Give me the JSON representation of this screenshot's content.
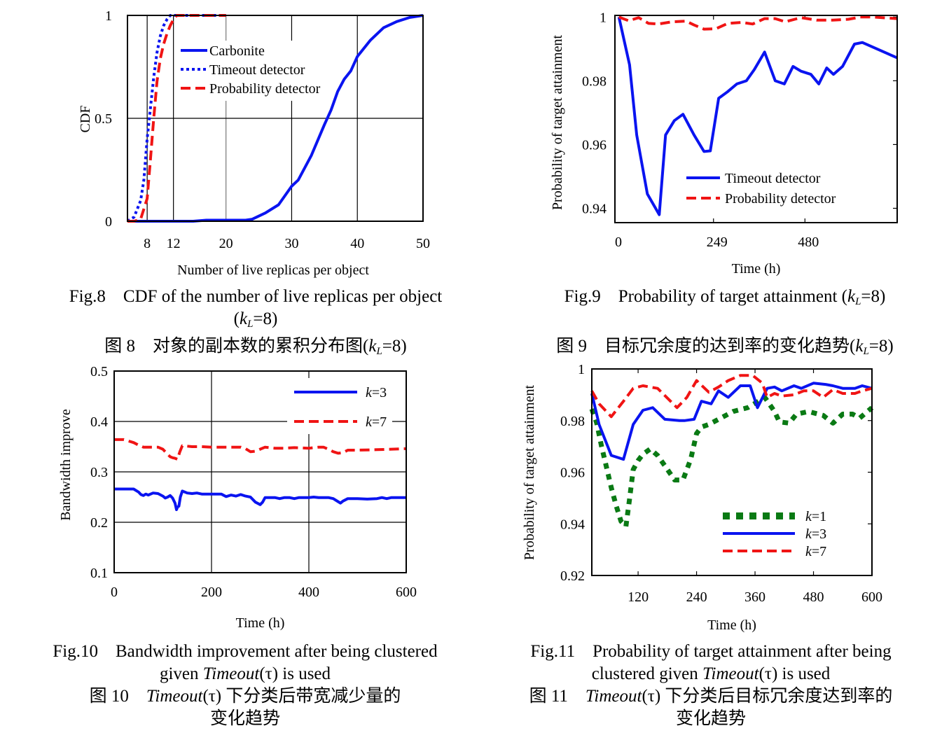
{
  "colors": {
    "blue": "#0a14f0",
    "red": "#f01414",
    "green": "#0a7a14",
    "grid": "#000000"
  },
  "chart_data": [
    {
      "id": "fig8",
      "type": "line",
      "ylabel": "CDF",
      "xlabel": "Number of live replicas per object",
      "xlim": [
        5,
        50
      ],
      "ylim": [
        0,
        1
      ],
      "xticks": [
        8,
        12,
        20,
        30,
        40,
        50
      ],
      "yticks": [
        0,
        0.5,
        1
      ],
      "ytick_labels": [
        "0",
        "0.5",
        "1"
      ],
      "grid": true,
      "legend_position": "top-center",
      "series": [
        {
          "name": "Carbonite",
          "style": "solid",
          "color": "#0a14f0",
          "x": [
            5,
            10,
            15,
            17,
            20,
            23,
            24,
            26,
            28,
            30,
            31,
            33,
            35,
            36,
            37,
            38,
            39,
            40,
            42,
            44,
            46,
            48,
            50
          ],
          "y": [
            0,
            0,
            0,
            0.005,
            0.005,
            0.005,
            0.01,
            0.04,
            0.08,
            0.17,
            0.2,
            0.32,
            0.47,
            0.54,
            0.63,
            0.69,
            0.73,
            0.8,
            0.88,
            0.94,
            0.97,
            0.99,
            1.0
          ]
        },
        {
          "name": "Timeout detector",
          "style": "dotted",
          "color": "#0a14f0",
          "x": [
            5,
            6,
            7,
            7.5,
            8,
            8.5,
            9,
            9.5,
            10,
            10.5,
            11,
            11.5,
            12,
            20
          ],
          "y": [
            0,
            0.02,
            0.1,
            0.2,
            0.4,
            0.55,
            0.7,
            0.82,
            0.9,
            0.95,
            0.98,
            1.0,
            1.0,
            1.0
          ]
        },
        {
          "name": "Probability detector",
          "style": "dashed",
          "color": "#f01414",
          "x": [
            5,
            6,
            7,
            8,
            8.5,
            9,
            9.5,
            10,
            10.5,
            11,
            11.5,
            12,
            12.5,
            13,
            20
          ],
          "y": [
            0,
            0,
            0.01,
            0.11,
            0.3,
            0.5,
            0.68,
            0.79,
            0.86,
            0.91,
            0.95,
            0.98,
            1.0,
            1.0,
            1.0
          ]
        }
      ]
    },
    {
      "id": "fig9",
      "type": "line",
      "ylabel": "Probability of target attainment",
      "xlabel": "Time (h)",
      "xlim": [
        0,
        713
      ],
      "ylim": [
        0.9355,
        1.0005
      ],
      "xticks": [
        0,
        249,
        480
      ],
      "yticks": [
        0.94,
        0.96,
        0.98,
        1
      ],
      "ytick_labels": [
        "0.94",
        "0.96",
        "0.98",
        "1"
      ],
      "grid": false,
      "legend_position": "bottom-center",
      "series": [
        {
          "name": "Timeout detector",
          "style": "solid",
          "color": "#0a14f0",
          "x": [
            10,
            37,
            55,
            82,
            112,
            128,
            150,
            172,
            200,
            225,
            241,
            262,
            284,
            308,
            332,
            352,
            378,
            405,
            428,
            450,
            470,
            495,
            515,
            535,
            552,
            575,
            605,
            625,
            713
          ],
          "y": [
            1.0,
            0.985,
            0.963,
            0.9445,
            0.938,
            0.963,
            0.9675,
            0.9695,
            0.963,
            0.9578,
            0.958,
            0.9745,
            0.9765,
            0.979,
            0.98,
            0.9835,
            0.989,
            0.98,
            0.979,
            0.9845,
            0.983,
            0.982,
            0.979,
            0.984,
            0.982,
            0.9845,
            0.9915,
            0.992,
            0.9872
          ]
        },
        {
          "name": "Probability detector",
          "style": "dashed",
          "color": "#f01414",
          "x": [
            10,
            35,
            60,
            85,
            110,
            145,
            180,
            200,
            225,
            255,
            285,
            320,
            348,
            378,
            405,
            430,
            470,
            510,
            550,
            590,
            620,
            650,
            713
          ],
          "y": [
            1.0,
            0.9988,
            0.9998,
            0.998,
            0.9978,
            0.9985,
            0.9987,
            0.9975,
            0.9962,
            0.9963,
            0.998,
            0.9983,
            0.9978,
            0.9995,
            0.9995,
            0.9985,
            0.9998,
            0.999,
            0.999,
            0.9993,
            1.0,
            1.0,
            0.9995
          ]
        }
      ]
    },
    {
      "id": "fig10",
      "type": "line",
      "ylabel": "Bandwidth improve",
      "xlabel": "Time (h)",
      "xlim": [
        0,
        600
      ],
      "ylim": [
        0.1,
        0.5
      ],
      "xticks": [
        0,
        200,
        400,
        600
      ],
      "yticks": [
        0.1,
        0.2,
        0.3,
        0.4,
        0.5
      ],
      "ytick_labels": [
        "0.1",
        "0.2",
        "0.3",
        "0.4",
        "0.5"
      ],
      "grid": true,
      "legend_position": "top-right",
      "series": [
        {
          "name": "k=3",
          "legend_k": "k",
          "legend_val": "=3",
          "style": "solid",
          "color": "#0a14f0",
          "x": [
            0,
            20,
            40,
            50,
            55,
            60,
            65,
            70,
            80,
            90,
            100,
            105,
            110,
            115,
            120,
            125,
            128,
            130,
            133,
            136,
            140,
            150,
            160,
            170,
            180,
            200,
            220,
            230,
            240,
            250,
            260,
            270,
            280,
            290,
            300,
            305,
            310,
            330,
            340,
            350,
            360,
            370,
            380,
            400,
            410,
            420,
            440,
            450,
            460,
            465,
            470,
            480,
            500,
            520,
            540,
            550,
            560,
            570,
            600
          ],
          "y": [
            0.266,
            0.266,
            0.266,
            0.26,
            0.255,
            0.253,
            0.256,
            0.254,
            0.258,
            0.257,
            0.252,
            0.248,
            0.25,
            0.253,
            0.248,
            0.238,
            0.225,
            0.23,
            0.232,
            0.25,
            0.262,
            0.258,
            0.257,
            0.258,
            0.256,
            0.256,
            0.256,
            0.251,
            0.254,
            0.252,
            0.255,
            0.252,
            0.25,
            0.24,
            0.235,
            0.24,
            0.249,
            0.249,
            0.247,
            0.249,
            0.249,
            0.247,
            0.249,
            0.249,
            0.25,
            0.249,
            0.249,
            0.247,
            0.241,
            0.238,
            0.242,
            0.247,
            0.247,
            0.246,
            0.247,
            0.249,
            0.247,
            0.249,
            0.249
          ]
        },
        {
          "name": "k=7",
          "legend_k": "k",
          "legend_val": "=7",
          "style": "dashed",
          "color": "#f01414",
          "x": [
            0,
            20,
            40,
            50,
            60,
            70,
            90,
            100,
            110,
            115,
            120,
            125,
            130,
            135,
            140,
            160,
            180,
            200,
            240,
            260,
            270,
            280,
            290,
            300,
            310,
            330,
            350,
            370,
            400,
            420,
            430,
            440,
            450,
            460,
            470,
            480,
            500,
            540,
            600
          ],
          "y": [
            0.364,
            0.364,
            0.358,
            0.353,
            0.349,
            0.349,
            0.349,
            0.345,
            0.335,
            0.33,
            0.328,
            0.327,
            0.325,
            0.34,
            0.352,
            0.35,
            0.35,
            0.349,
            0.349,
            0.349,
            0.346,
            0.34,
            0.341,
            0.345,
            0.349,
            0.347,
            0.347,
            0.348,
            0.347,
            0.349,
            0.349,
            0.345,
            0.34,
            0.337,
            0.338,
            0.343,
            0.343,
            0.344,
            0.346
          ]
        }
      ]
    },
    {
      "id": "fig11",
      "type": "line",
      "ylabel": "Probability of target attainment",
      "xlabel": "Time (h)",
      "xlim": [
        25,
        600
      ],
      "ylim": [
        0.92,
        1.0
      ],
      "xticks": [
        120,
        240,
        360,
        480,
        600
      ],
      "yticks": [
        0.92,
        0.94,
        0.96,
        0.98,
        1
      ],
      "ytick_labels": [
        "0.92",
        "0.94",
        "0.96",
        "0.98",
        "1"
      ],
      "grid": false,
      "legend_position": "bottom-right",
      "series": [
        {
          "name": "k=1",
          "legend_k": "k",
          "legend_val": "=1",
          "style": "dotted",
          "color": "#0a7a14",
          "x": [
            25,
            35,
            45,
            55,
            65,
            75,
            85,
            95,
            102,
            110,
            120,
            130,
            145,
            160,
            175,
            195,
            212,
            228,
            240,
            250,
            265,
            290,
            315,
            345,
            380,
            400,
            410,
            430,
            445,
            470,
            500,
            520,
            540,
            560,
            575,
            600
          ],
          "y": [
            0.9845,
            0.979,
            0.97,
            0.962,
            0.954,
            0.947,
            0.941,
            0.939,
            0.949,
            0.961,
            0.9645,
            0.967,
            0.969,
            0.9665,
            0.9625,
            0.957,
            0.957,
            0.965,
            0.975,
            0.9775,
            0.9785,
            0.981,
            0.9835,
            0.985,
            0.989,
            0.9835,
            0.9795,
            0.979,
            0.9825,
            0.9835,
            0.982,
            0.979,
            0.9825,
            0.9825,
            0.981,
            0.985
          ]
        },
        {
          "name": "k=3",
          "legend_k": "k",
          "legend_val": "=3",
          "style": "solid",
          "color": "#0a14f0",
          "x": [
            25,
            40,
            65,
            90,
            110,
            130,
            150,
            175,
            205,
            215,
            235,
            250,
            270,
            285,
            305,
            330,
            350,
            365,
            385,
            400,
            415,
            440,
            455,
            480,
            505,
            520,
            540,
            565,
            580,
            600
          ],
          "y": [
            0.9905,
            0.9785,
            0.9665,
            0.965,
            0.9785,
            0.984,
            0.985,
            0.9805,
            0.98,
            0.98,
            0.9805,
            0.9875,
            0.9865,
            0.9915,
            0.989,
            0.9935,
            0.9935,
            0.985,
            0.9925,
            0.993,
            0.9915,
            0.9935,
            0.9925,
            0.9945,
            0.994,
            0.9935,
            0.9925,
            0.9925,
            0.9935,
            0.9925
          ]
        },
        {
          "name": "k=7",
          "legend_k": "k",
          "legend_val": "=7",
          "style": "dashed",
          "color": "#f01414",
          "x": [
            25,
            40,
            65,
            90,
            110,
            130,
            160,
            200,
            220,
            240,
            265,
            285,
            305,
            330,
            355,
            375,
            385,
            400,
            415,
            440,
            460,
            480,
            500,
            520,
            540,
            565,
            580,
            600
          ],
          "y": [
            0.9915,
            0.9865,
            0.9815,
            0.9875,
            0.9925,
            0.9935,
            0.9925,
            0.985,
            0.989,
            0.9955,
            0.991,
            0.993,
            0.9955,
            0.9975,
            0.9975,
            0.9945,
            0.989,
            0.9905,
            0.9895,
            0.99,
            0.9915,
            0.9915,
            0.989,
            0.992,
            0.9905,
            0.9905,
            0.9915,
            0.9925
          ]
        }
      ]
    }
  ],
  "captions": {
    "fig8": {
      "en_line1": "Fig.8    CDF of the number of live replicas per object",
      "en_line2_pre": "(",
      "en_line2_k": "k",
      "en_line2_sub": "L",
      "en_line2_post": "=8)",
      "zh_pre": "图 8    对象的副本数的累积分布图(",
      "zh_k": "k",
      "zh_sub": "L",
      "zh_post": "=8)"
    },
    "fig9": {
      "en_pre": "Fig.9    Probability of target attainment (",
      "en_k": "k",
      "en_sub": "L",
      "en_post": "=8)",
      "zh_pre": "图 9    目标冗余度的达到率的变化趋势(",
      "zh_k": "k",
      "zh_sub": "L",
      "zh_post": "=8)"
    },
    "fig10": {
      "en_line1": "Fig.10    Bandwidth improvement after being clustered",
      "en_line2_pre": "given ",
      "en_line2_it": "Timeout",
      "en_line2_post": "(τ) is used",
      "zh_line1_pre": "图 10    ",
      "zh_line1_it": "Timeout",
      "zh_line1_post": "(τ) 下分类后带宽减少量的",
      "zh_line2": "变化趋势"
    },
    "fig11": {
      "en_line1": "Fig.11    Probability of target attainment after being",
      "en_line2_pre": "clustered given ",
      "en_line2_it": "Timeout",
      "en_line2_post": "(τ) is used",
      "zh_line1_pre": "图 11    ",
      "zh_line1_it": "Timeout",
      "zh_line1_post": "(τ) 下分类后目标冗余度达到率的",
      "zh_line2": "变化趋势"
    }
  }
}
